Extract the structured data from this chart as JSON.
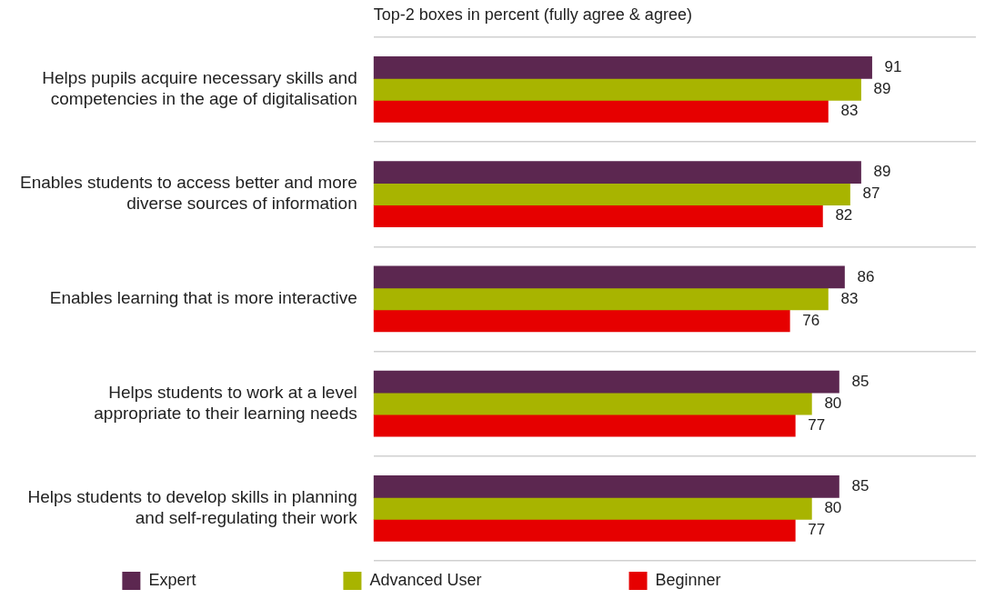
{
  "chart_data": {
    "type": "bar",
    "orientation": "horizontal",
    "title": "Top-2 boxes in percent (fully agree & agree)",
    "categories": [
      "Helps pupils acquire necessary skills and competencies in the age of digitalisation",
      "Enables students to access better and more diverse sources of information",
      "Enables learning that is more interactive",
      "Helps students to work at a level appropriate to their learning needs",
      "Helps students to develop skills in planning and self-regulating their work"
    ],
    "series": [
      {
        "name": "Expert",
        "color": "#5c2750",
        "values": [
          91,
          89,
          86,
          85,
          85
        ]
      },
      {
        "name": "Advanced User",
        "color": "#a8b400",
        "values": [
          89,
          87,
          83,
          80,
          80
        ]
      },
      {
        "name": "Beginner",
        "color": "#e60000",
        "values": [
          83,
          82,
          76,
          77,
          77
        ]
      }
    ],
    "xlim": [
      0,
      110
    ],
    "data_labels": true,
    "grid": "y",
    "legend": "bottom",
    "tick_labels": "y"
  }
}
